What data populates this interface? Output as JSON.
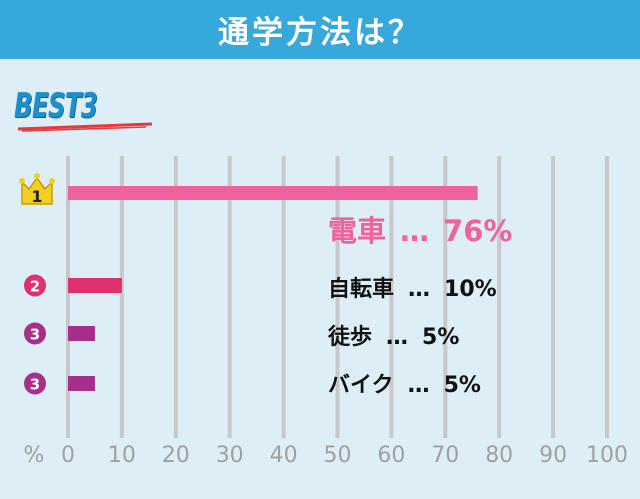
{
  "header": {
    "title": "通学方法は？"
  },
  "badge": {
    "text": "BEST3"
  },
  "colors": {
    "header_bg": "#36a8dc",
    "background": "#ddeef6",
    "bar_1": "#f0619f",
    "bar_2": "#e0306e",
    "bar_3": "#a62e8c",
    "gridline": "#c8c8c8",
    "tick_text": "#a0a0a0",
    "crown": "#f3cf1f"
  },
  "chart_data": {
    "type": "bar",
    "orientation": "horizontal",
    "categories": [
      "電車",
      "自転車",
      "徒歩",
      "バイク"
    ],
    "values": [
      76,
      10,
      5,
      5
    ],
    "ranks": [
      "1",
      "2",
      "3",
      "3"
    ],
    "value_labels": [
      "76%",
      "10%",
      "5%",
      "5%"
    ],
    "separator": "…",
    "unit_label": "%",
    "xlim": [
      0,
      100
    ],
    "xticks": [
      0,
      10,
      20,
      30,
      40,
      50,
      60,
      70,
      80,
      90,
      100
    ],
    "grid": true
  }
}
